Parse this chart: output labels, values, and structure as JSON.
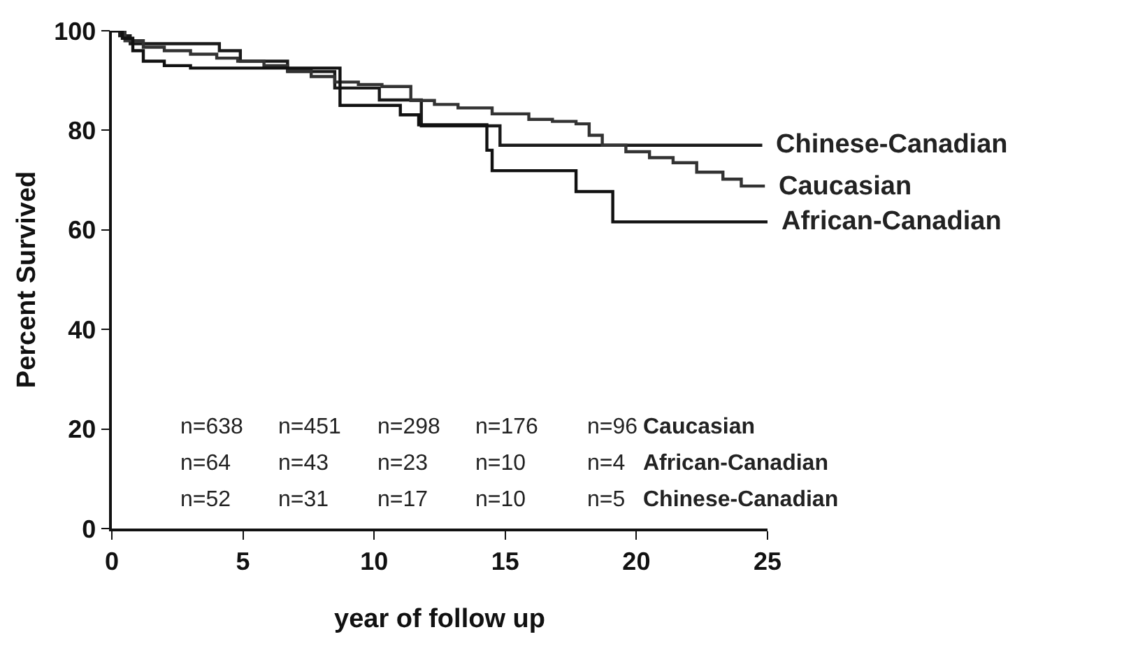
{
  "chart_data": {
    "type": "step",
    "xlabel": "year of follow up",
    "ylabel": "Percent Survived",
    "series": [
      {
        "name": "Chinese-Canadian",
        "color": "#1a1a1a",
        "x": [
          0,
          0.3,
          0.7,
          4.1,
          4.9,
          6.7,
          8.5,
          10.2,
          11.8,
          14.8,
          24.8
        ],
        "values": [
          100,
          99,
          97.4,
          96,
          93.9,
          91.8,
          88.5,
          86.1,
          80.9,
          77,
          77
        ]
      },
      {
        "name": "Caucasian",
        "color": "#333333",
        "x": [
          0,
          0.5,
          1.2,
          2,
          3,
          4,
          4.8,
          5.8,
          6.7,
          7.6,
          8.5,
          9.4,
          10.3,
          11.4,
          12.3,
          13.2,
          14.5,
          15.9,
          16.8,
          17.7,
          18.2,
          18.7,
          19.6,
          20.5,
          21.4,
          22.3,
          23.3,
          24,
          24.9
        ],
        "values": [
          100,
          98,
          96.7,
          96,
          95.3,
          94.5,
          93.9,
          93,
          92,
          90.8,
          89.7,
          89.2,
          88.8,
          86,
          85.2,
          84.5,
          83.3,
          82.2,
          81.8,
          81.3,
          79,
          77,
          75.7,
          74.5,
          73.5,
          71.6,
          70.2,
          68.8,
          68.8
        ]
      },
      {
        "name": "African-Canadian",
        "color": "#111111",
        "x": [
          0,
          0.4,
          0.8,
          1.2,
          2,
          3,
          8.7,
          11,
          11.7,
          14.3,
          14.5,
          17.7,
          19.1,
          25
        ],
        "values": [
          100,
          98.5,
          96,
          93.9,
          93,
          92.5,
          85,
          83.1,
          81.1,
          76,
          71.9,
          67.7,
          61.6,
          61.6
        ]
      }
    ],
    "xlim": [
      0,
      25
    ],
    "xticks": [
      0,
      5,
      10,
      15,
      20,
      25
    ],
    "ylim": [
      0,
      100
    ],
    "yticks": [
      0,
      20,
      40,
      60,
      80,
      100
    ],
    "legend": false,
    "marker": "none",
    "line_style": "solid",
    "annotations": [
      "n=638",
      "n=451",
      "n=298",
      "n=176",
      "n=96",
      "Caucasian",
      "n=64",
      "n=43",
      "n=23",
      "n=10",
      "n=4",
      "African-Canadian",
      "n=52",
      "n=31",
      "n=17",
      "n=10",
      "n=5",
      "Chinese-Canadian"
    ]
  }
}
